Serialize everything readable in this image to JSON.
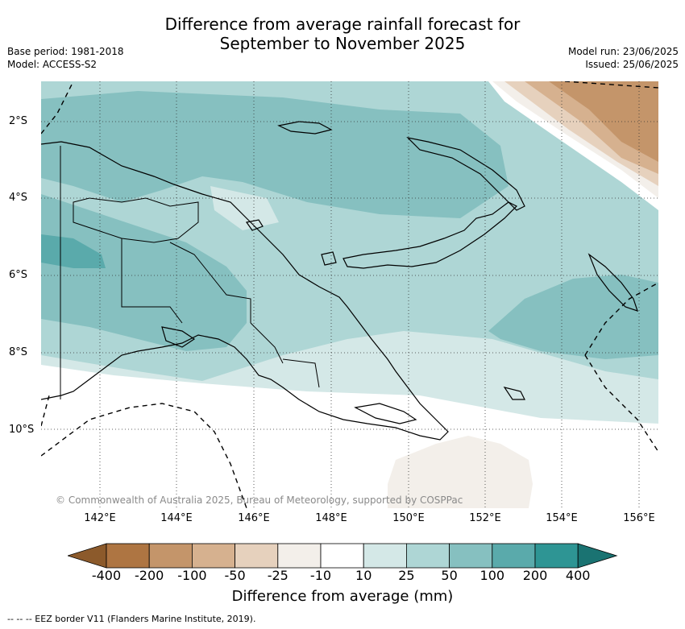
{
  "title_line1": "Difference from average rainfall forecast for",
  "title_line2": "September to November 2025",
  "meta_left": {
    "base_period": "Base period: 1981-2018",
    "model": "Model: ACCESS-S2"
  },
  "meta_right": {
    "model_run": "Model run: 23/06/2025",
    "issued": "Issued: 25/06/2025"
  },
  "map": {
    "lat_labels": [
      "2°S",
      "4°S",
      "6°S",
      "8°S",
      "10°S"
    ],
    "lon_labels": [
      "142°E",
      "144°E",
      "146°E",
      "148°E",
      "150°E",
      "152°E",
      "154°E",
      "156°E"
    ],
    "copyright": "© Commonwealth of Australia 2025, Bureau of Meteorology, supported by COSPPac"
  },
  "colorbar": {
    "ticks": [
      "-400",
      "-200",
      "-100",
      "-50",
      "-25",
      "-10",
      "10",
      "25",
      "50",
      "100",
      "200",
      "400"
    ],
    "colors": [
      "#8c5a2b",
      "#ae7542",
      "#c4956a",
      "#d6b18f",
      "#e6d1bd",
      "#f3efea",
      "#ffffff",
      "#d4e8e7",
      "#aed6d5",
      "#86c0c0",
      "#5aaaab",
      "#2e9594",
      "#1a7372"
    ],
    "title": "Difference from average (mm)"
  },
  "footer": "--  --  -- EEZ border V11 (Flanders Marine Institute, 2019)."
}
